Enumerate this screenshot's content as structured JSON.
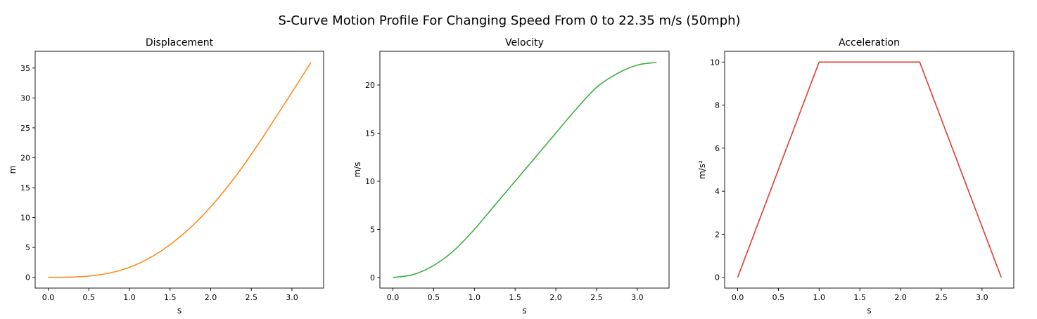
{
  "figure_title": "S-Curve Motion Profile For Changing Speed From 0 to 22.35 m/s (50mph)",
  "chart_data": [
    {
      "type": "line",
      "title": "Displacement",
      "xlabel": "s",
      "ylabel": "m",
      "color": "#ff8c1a",
      "xlim": [
        -0.16,
        3.39
      ],
      "ylim": [
        -1.8,
        37.8
      ],
      "xticks": [
        0.0,
        0.5,
        1.0,
        1.5,
        2.0,
        2.5,
        3.0
      ],
      "xtick_labels": [
        "0.0",
        "0.5",
        "1.0",
        "1.5",
        "2.0",
        "2.5",
        "3.0"
      ],
      "yticks": [
        0,
        5,
        10,
        15,
        20,
        25,
        30,
        35
      ],
      "ytick_labels": [
        "0",
        "5",
        "10",
        "15",
        "20",
        "25",
        "30",
        "35"
      ],
      "x": [
        0,
        0.25,
        0.5,
        0.75,
        1.0,
        1.25,
        1.5,
        1.75,
        2.0,
        2.25,
        2.5,
        2.75,
        3.0,
        3.236
      ],
      "y": [
        0,
        0.03,
        0.21,
        0.7,
        1.67,
        3.25,
        5.46,
        8.3,
        11.77,
        15.88,
        20.57,
        25.69,
        30.95,
        35.96
      ]
    },
    {
      "type": "line",
      "title": "Velocity",
      "xlabel": "s",
      "ylabel": "m/s",
      "color": "#3cb043",
      "xlim": [
        -0.16,
        3.39
      ],
      "ylim": [
        -1.1,
        23.5
      ],
      "xticks": [
        0.0,
        0.5,
        1.0,
        1.5,
        2.0,
        2.5,
        3.0
      ],
      "xtick_labels": [
        "0.0",
        "0.5",
        "1.0",
        "1.5",
        "2.0",
        "2.5",
        "3.0"
      ],
      "yticks": [
        0,
        5,
        10,
        15,
        20
      ],
      "ytick_labels": [
        "0",
        "5",
        "10",
        "15",
        "20"
      ],
      "x": [
        0,
        0.25,
        0.5,
        0.75,
        1.0,
        1.25,
        1.5,
        1.75,
        2.0,
        2.235,
        2.5,
        2.75,
        3.0,
        3.236
      ],
      "y": [
        0,
        0.31,
        1.25,
        2.81,
        5.0,
        7.5,
        10.0,
        12.5,
        15.0,
        17.35,
        19.75,
        21.17,
        22.07,
        22.35
      ]
    },
    {
      "type": "line",
      "title": "Acceleration",
      "xlabel": "s",
      "ylabel": "m/s²",
      "color": "#e03c31",
      "xlim": [
        -0.16,
        3.39
      ],
      "ylim": [
        -0.5,
        10.5
      ],
      "xticks": [
        0.0,
        0.5,
        1.0,
        1.5,
        2.0,
        2.5,
        3.0
      ],
      "xtick_labels": [
        "0.0",
        "0.5",
        "1.0",
        "1.5",
        "2.0",
        "2.5",
        "3.0"
      ],
      "yticks": [
        0,
        2,
        4,
        6,
        8,
        10
      ],
      "ytick_labels": [
        "0",
        "2",
        "4",
        "6",
        "8",
        "10"
      ],
      "x": [
        0,
        1.0,
        2.235,
        3.236
      ],
      "y": [
        0,
        10,
        10,
        0
      ]
    }
  ]
}
